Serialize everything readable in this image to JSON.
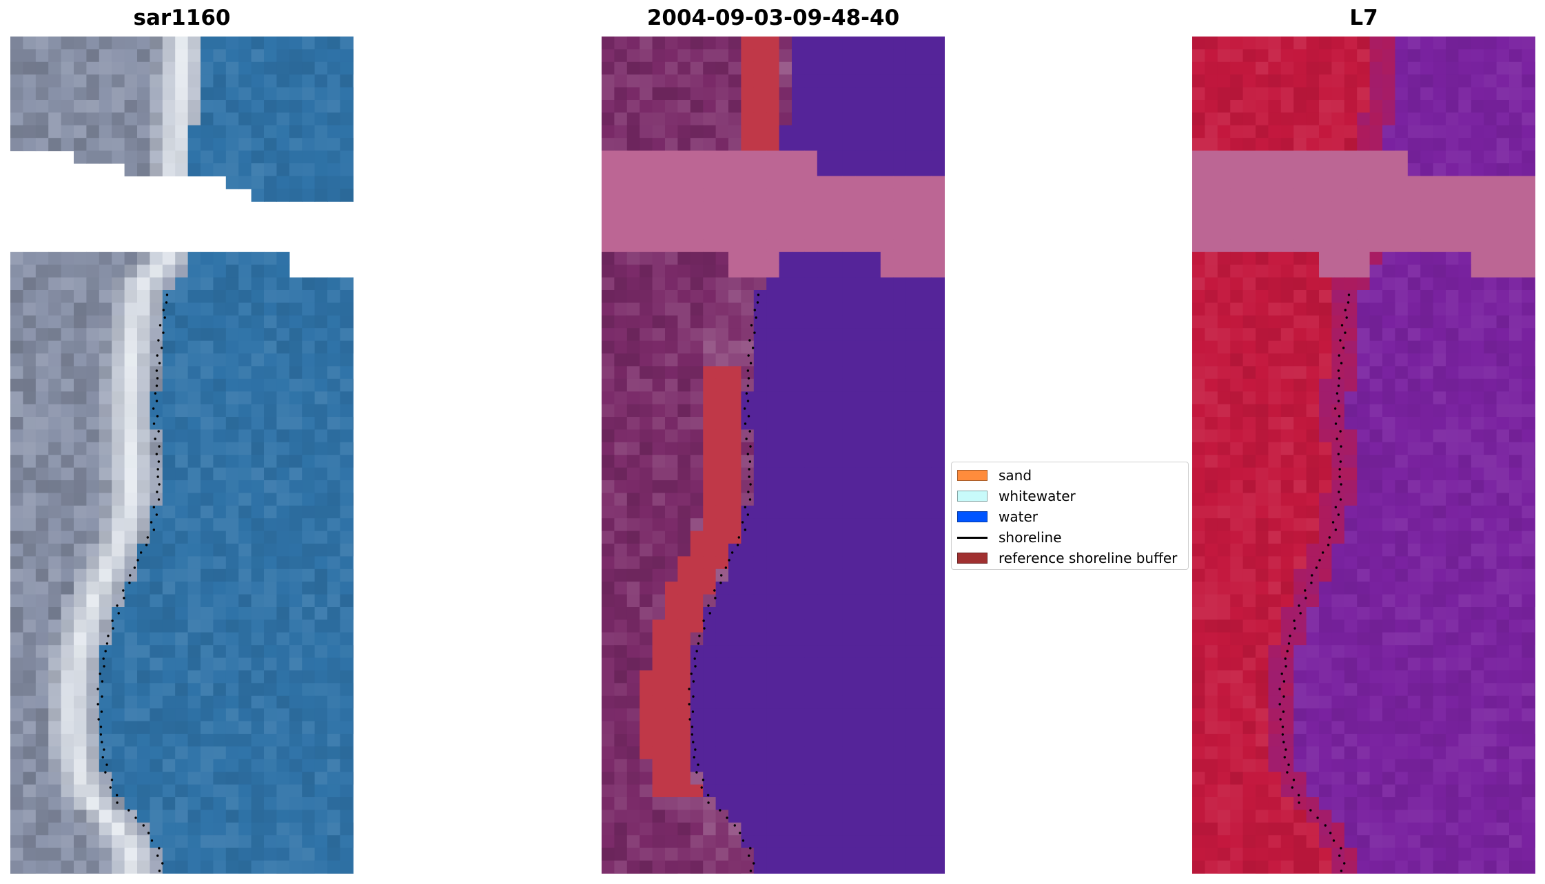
{
  "panels": [
    {
      "title": "sar1160"
    },
    {
      "title": "2004-09-03-09-48-40"
    },
    {
      "title": "L7"
    }
  ],
  "legend": {
    "items": [
      {
        "label": "sand",
        "color": "#ff8c3c",
        "kind": "patch"
      },
      {
        "label": "whitewater",
        "color": "#c8fafa",
        "kind": "patch"
      },
      {
        "label": "water",
        "color": "#0055ff",
        "kind": "patch"
      },
      {
        "label": "shoreline",
        "color": "#000000",
        "kind": "line"
      },
      {
        "label": "reference shoreline buffer",
        "color": "#a03030",
        "kind": "patch"
      }
    ]
  },
  "colors": {
    "rgb_sand": "#8a93aa",
    "rgb_white": "#eef2f6",
    "rgb_water": "#2f73a8",
    "class_land": "#7a2a68",
    "class_buffer": "#c03848",
    "class_water": "#552499",
    "class_cloud": "#bc6694",
    "l7_land": "#c4183e",
    "l7_water": "#7a22a0",
    "l7_cloud": "#bc6694",
    "no_data": "#ffffff",
    "shoreline": "#000000"
  }
}
